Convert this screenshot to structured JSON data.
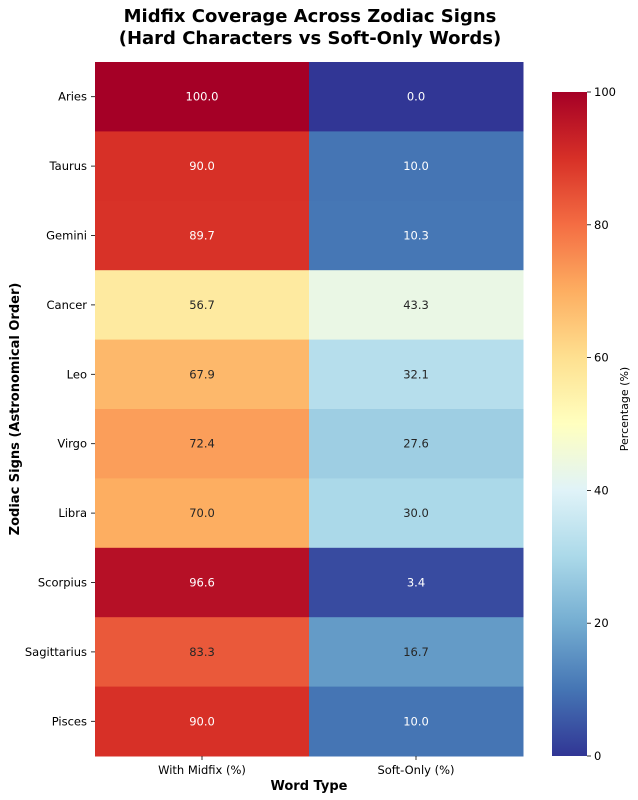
{
  "chart_data": {
    "type": "heatmap",
    "title_lines": [
      "Midfix Coverage Across Zodiac Signs",
      "(Hard Characters vs Soft-Only Words)"
    ],
    "xlabel": "Word Type",
    "ylabel": "Zodiac Signs (Astronomical Order)",
    "columns": [
      "With Midfix (%)",
      "Soft-Only (%)"
    ],
    "rows": [
      "Aries",
      "Taurus",
      "Gemini",
      "Cancer",
      "Leo",
      "Virgo",
      "Libra",
      "Scorpius",
      "Sagittarius",
      "Pisces"
    ],
    "values": [
      [
        100.0,
        0.0
      ],
      [
        90.0,
        10.0
      ],
      [
        89.7,
        10.3
      ],
      [
        56.7,
        43.3
      ],
      [
        67.9,
        32.1
      ],
      [
        72.4,
        27.6
      ],
      [
        70.0,
        30.0
      ],
      [
        96.6,
        3.4
      ],
      [
        83.3,
        16.7
      ],
      [
        90.0,
        10.0
      ]
    ],
    "value_format": "0.0",
    "colorbar": {
      "label": "Percentage (%)",
      "range": [
        0,
        100
      ],
      "ticks": [
        0,
        20,
        40,
        60,
        80,
        100
      ],
      "colormap": "RdYlBu_r",
      "colormap_stops": [
        "#313695",
        "#4575b4",
        "#74add1",
        "#abd9e9",
        "#e0f3f8",
        "#ffffbf",
        "#fee090",
        "#fdae61",
        "#f46d43",
        "#d73027",
        "#a50026"
      ]
    }
  }
}
